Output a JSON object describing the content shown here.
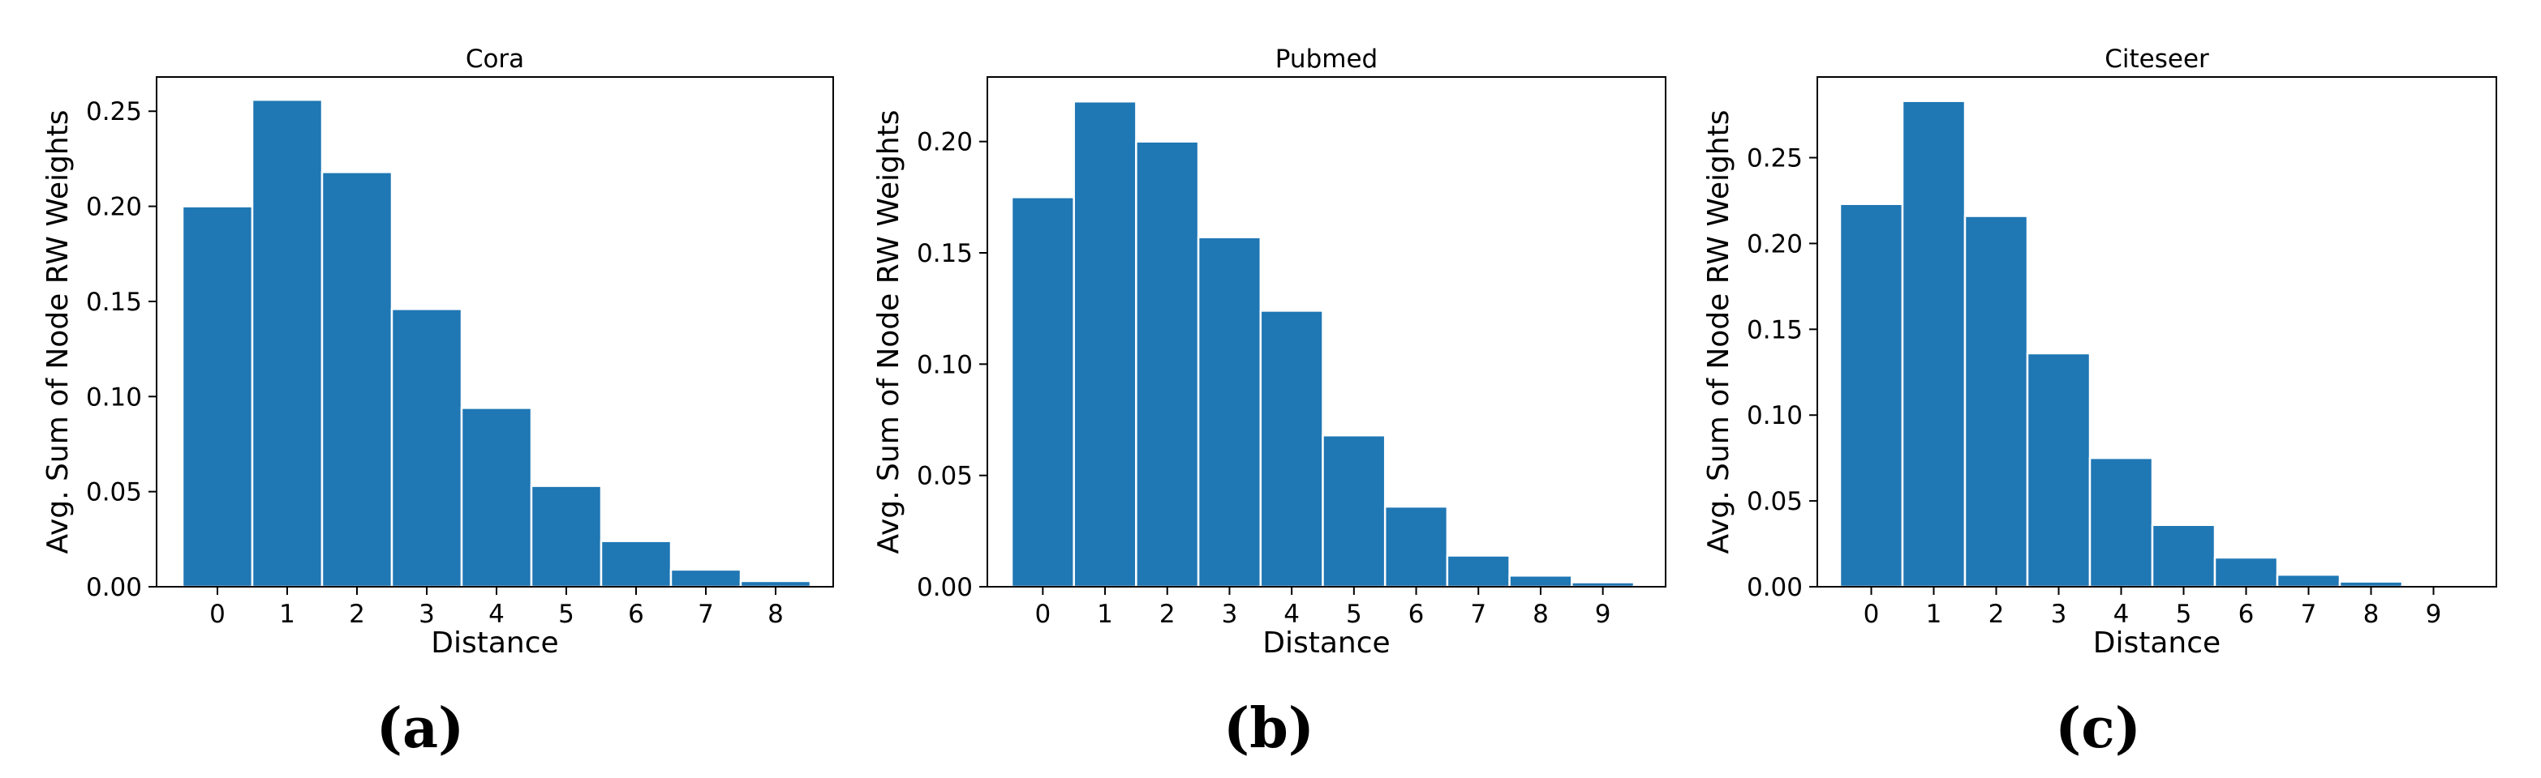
{
  "colors": {
    "bar": "#1f77b4",
    "bar_edge": "#ffffff",
    "axis": "#000000",
    "background": "#ffffff"
  },
  "chart_data": [
    {
      "type": "bar",
      "title": "Cora",
      "xlabel": "Distance",
      "ylabel": "Avg. Sum of Node RW Weights",
      "panel_label": "(a)",
      "categories": [
        "0",
        "1",
        "2",
        "3",
        "4",
        "5",
        "6",
        "7",
        "8"
      ],
      "values": [
        0.2,
        0.256,
        0.218,
        0.146,
        0.094,
        0.053,
        0.024,
        0.009,
        0.003
      ],
      "yticks": [
        "0.00",
        "0.05",
        "0.10",
        "0.15",
        "0.20",
        "0.25"
      ],
      "ylim": [
        0,
        0.268
      ],
      "legend": "none",
      "grid": false
    },
    {
      "type": "bar",
      "title": "Pubmed",
      "xlabel": "Distance",
      "ylabel": "Avg. Sum of Node RW Weights",
      "panel_label": "(b)",
      "categories": [
        "0",
        "1",
        "2",
        "3",
        "4",
        "5",
        "6",
        "7",
        "8",
        "9"
      ],
      "values": [
        0.175,
        0.218,
        0.2,
        0.157,
        0.124,
        0.068,
        0.036,
        0.014,
        0.005,
        0.002
      ],
      "yticks": [
        "0.00",
        "0.05",
        "0.10",
        "0.15",
        "0.20"
      ],
      "ylim": [
        0,
        0.229
      ],
      "legend": "none",
      "grid": false
    },
    {
      "type": "bar",
      "title": "Citeseer",
      "xlabel": "Distance",
      "ylabel": "Avg. Sum of Node RW Weights",
      "panel_label": "(c)",
      "categories": [
        "0",
        "1",
        "2",
        "3",
        "4",
        "5",
        "6",
        "7",
        "8",
        "9"
      ],
      "values": [
        0.223,
        0.283,
        0.216,
        0.136,
        0.075,
        0.036,
        0.017,
        0.007,
        0.003,
        0.001
      ],
      "yticks": [
        "0.00",
        "0.05",
        "0.10",
        "0.15",
        "0.20",
        "0.25"
      ],
      "ylim": [
        0,
        0.297
      ],
      "legend": "none",
      "grid": false
    }
  ]
}
